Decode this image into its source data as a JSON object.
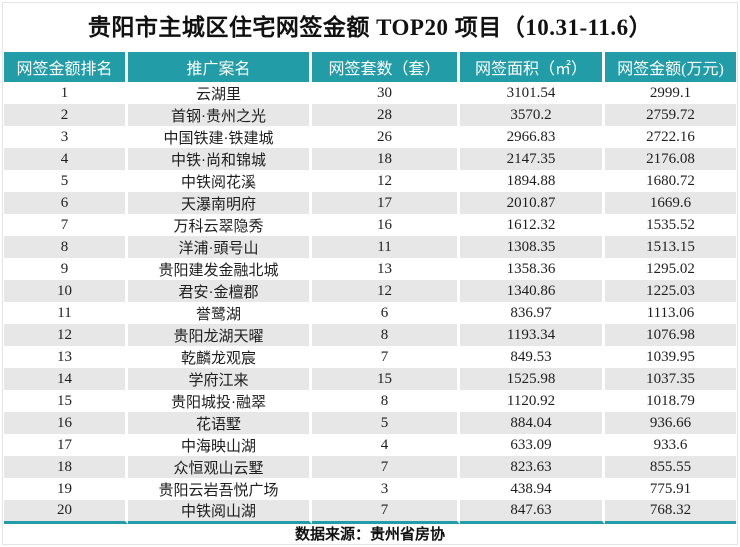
{
  "title": "贵阳市主城区住宅网签金额 TOP20 项目（10.31-11.6）",
  "footer": "数据来源：贵州省房协",
  "colors": {
    "header_teal": "#229CA6",
    "row_stripe": "#E7E7E7",
    "text": "#1E1E1E"
  },
  "chart_data": {
    "type": "table",
    "title": "贵阳市主城区住宅网签金额 TOP20 项目（10.31-11.6）",
    "source": "数据来源：贵州省房协",
    "columns": [
      "网签金额排名",
      "推广案名",
      "网签套数（套）",
      "网签面积（㎡）",
      "网签金额(万元)"
    ],
    "column_keys": [
      "rank",
      "project_name",
      "units_signed",
      "area_signed_sqm",
      "amount_signed_wan_yuan"
    ],
    "rows": [
      [
        1,
        "云湖里",
        30,
        3101.54,
        2999.1
      ],
      [
        2,
        "首钢·贵州之光",
        28,
        3570.2,
        2759.72
      ],
      [
        3,
        "中国铁建·铁建城",
        26,
        2966.83,
        2722.16
      ],
      [
        4,
        "中铁·尚和锦城",
        18,
        2147.35,
        2176.08
      ],
      [
        5,
        "中铁阅花溪",
        12,
        1894.88,
        1680.72
      ],
      [
        6,
        "天瀑南明府",
        17,
        2010.87,
        1669.6
      ],
      [
        7,
        "万科云翠隐秀",
        16,
        1612.32,
        1535.52
      ],
      [
        8,
        "洋浦·頭号山",
        11,
        1308.35,
        1513.15
      ],
      [
        9,
        "贵阳建发金融北城",
        13,
        1358.36,
        1295.02
      ],
      [
        10,
        "君安·金檀郡",
        12,
        1340.86,
        1225.03
      ],
      [
        11,
        "誉鹭湖",
        6,
        836.97,
        1113.06
      ],
      [
        12,
        "贵阳龙湖天曜",
        8,
        1193.34,
        1076.98
      ],
      [
        13,
        "乾麟龙观宸",
        7,
        849.53,
        1039.95
      ],
      [
        14,
        "学府江来",
        15,
        1525.98,
        1037.35
      ],
      [
        15,
        "贵阳城投·融翠",
        8,
        1120.92,
        1018.79
      ],
      [
        16,
        "花语墅",
        5,
        884.04,
        936.66
      ],
      [
        17,
        "中海映山湖",
        4,
        633.09,
        933.6
      ],
      [
        18,
        "众恒观山云墅",
        7,
        823.63,
        855.55
      ],
      [
        19,
        "贵阳云岩吾悦广场",
        3,
        438.94,
        775.91
      ],
      [
        20,
        "中铁阅山湖",
        7,
        847.63,
        768.32
      ]
    ]
  }
}
